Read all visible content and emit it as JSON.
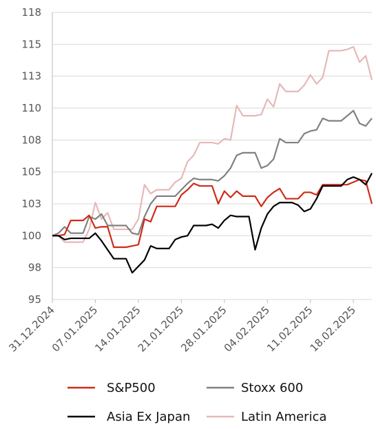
{
  "chart_data": {
    "type": "line",
    "x": [
      "31.12.2024",
      "01.01.2025",
      "02.01.2025",
      "03.01.2025",
      "04.01.2025",
      "05.01.2025",
      "06.01.2025",
      "07.01.2025",
      "08.01.2025",
      "09.01.2025",
      "10.01.2025",
      "11.01.2025",
      "12.01.2025",
      "13.01.2025",
      "14.01.2025",
      "15.01.2025",
      "16.01.2025",
      "17.01.2025",
      "18.01.2025",
      "19.01.2025",
      "20.01.2025",
      "21.01.2025",
      "22.01.2025",
      "23.01.2025",
      "24.01.2025",
      "25.01.2025",
      "26.01.2025",
      "27.01.2025",
      "28.01.2025",
      "29.01.2025",
      "30.01.2025",
      "31.01.2025",
      "01.02.2025",
      "02.02.2025",
      "03.02.2025",
      "04.02.2025",
      "05.02.2025",
      "06.02.2025",
      "07.02.2025",
      "08.02.2025",
      "09.02.2025",
      "10.02.2025",
      "11.02.2025",
      "12.02.2025",
      "13.02.2025",
      "14.02.2025",
      "15.02.2025",
      "16.02.2025",
      "17.02.2025",
      "18.02.2025",
      "19.02.2025",
      "20.02.2025",
      "21.02.2025"
    ],
    "xticks": [
      "31.12.2024",
      "07.01.2025",
      "14.01.2025",
      "21.01.2025",
      "28.01.2025",
      "04.02.2025",
      "11.02.2025",
      "18.02.2025"
    ],
    "ylim": [
      95,
      117.5
    ],
    "yticks": [
      95,
      {
        "value": 97.5,
        "label": "98"
      },
      100,
      {
        "value": 102.5,
        "label": "103"
      },
      105,
      {
        "value": 107.5,
        "label": "108"
      },
      110,
      {
        "value": 112.5,
        "label": "113"
      },
      115,
      {
        "value": 117.5,
        "label": "118"
      }
    ],
    "grid": true,
    "series": [
      {
        "name": "S&P500",
        "color": "#d02a17",
        "values": [
          100,
          100,
          100.1,
          101.2,
          101.2,
          101.2,
          101.6,
          100.6,
          100.7,
          100.7,
          99.1,
          99.1,
          99.1,
          99.2,
          99.3,
          101.3,
          101.1,
          102.3,
          102.3,
          102.3,
          102.3,
          103.2,
          103.6,
          104.1,
          103.9,
          103.9,
          103.9,
          102.5,
          103.5,
          103.0,
          103.5,
          103.1,
          103.1,
          103.1,
          102.3,
          103.0,
          103.4,
          103.7,
          102.9,
          102.9,
          102.9,
          103.4,
          103.4,
          103.2,
          104.0,
          104.0,
          104.0,
          104.0,
          104.0,
          104.2,
          104.4,
          104.3,
          102.5
        ]
      },
      {
        "name": "Stoxx 600",
        "color": "#808080",
        "values": [
          100,
          100.2,
          100.7,
          100.2,
          100.2,
          100.2,
          101.5,
          101.3,
          101.7,
          100.8,
          100.8,
          100.8,
          100.8,
          100.2,
          100.1,
          101.5,
          102.5,
          103.1,
          103.1,
          103.1,
          103.1,
          103.6,
          104.1,
          104.5,
          104.4,
          104.4,
          104.4,
          104.3,
          104.7,
          105.3,
          106.3,
          106.5,
          106.5,
          106.5,
          105.3,
          105.5,
          106.0,
          107.6,
          107.3,
          107.3,
          107.3,
          108.0,
          108.2,
          108.3,
          109.2,
          109.0,
          109.0,
          109.0,
          109.4,
          109.8,
          108.8,
          108.6,
          109.2
        ]
      },
      {
        "name": "Asia Ex Japan",
        "color": "#000000",
        "values": [
          100,
          100,
          99.7,
          99.8,
          99.8,
          99.8,
          99.8,
          100.2,
          99.6,
          98.9,
          98.2,
          98.2,
          98.2,
          97.1,
          97.6,
          98.1,
          99.2,
          99.0,
          99.0,
          99.0,
          99.7,
          99.9,
          100.0,
          100.8,
          100.8,
          100.8,
          100.9,
          100.6,
          101.2,
          101.6,
          101.5,
          101.5,
          101.5,
          98.9,
          100.6,
          101.7,
          102.3,
          102.6,
          102.6,
          102.6,
          102.4,
          101.9,
          102.1,
          102.9,
          103.9,
          103.9,
          103.9,
          103.9,
          104.4,
          104.6,
          104.4,
          104.0,
          104.9
        ]
      },
      {
        "name": "Latin America",
        "color": "#e6b8b8",
        "values": [
          100,
          100,
          99.5,
          99.5,
          99.5,
          99.5,
          100.5,
          102.6,
          101.3,
          101.8,
          100.5,
          100.5,
          100.5,
          100.5,
          101.3,
          104.0,
          103.3,
          103.6,
          103.6,
          103.6,
          104.2,
          104.5,
          105.8,
          106.3,
          107.3,
          107.3,
          107.3,
          107.2,
          107.6,
          107.5,
          110.2,
          109.4,
          109.4,
          109.4,
          109.5,
          110.7,
          110.1,
          111.9,
          111.3,
          111.3,
          111.3,
          111.8,
          112.6,
          111.9,
          112.4,
          114.5,
          114.5,
          114.5,
          114.6,
          114.8,
          113.6,
          114.1,
          112.2
        ]
      }
    ]
  }
}
